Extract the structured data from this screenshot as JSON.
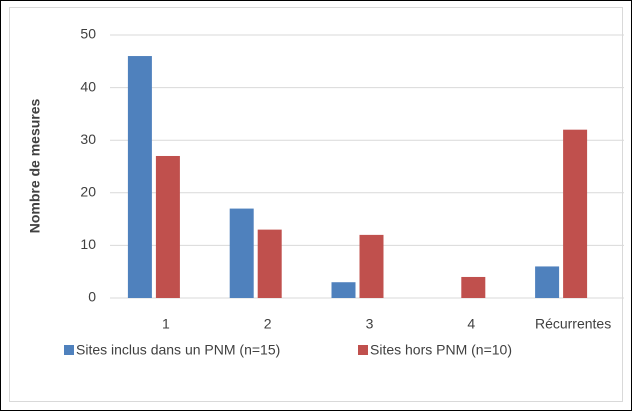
{
  "chart_data": {
    "type": "bar",
    "categories": [
      "1",
      "2",
      "3",
      "4",
      "Récurrentes"
    ],
    "series": [
      {
        "name": "Sites inclus dans un PNM (n=15)",
        "color": "#4f81bd",
        "values": [
          46,
          17,
          3,
          0,
          6
        ]
      },
      {
        "name": "Sites hors PNM (n=10)",
        "color": "#c0504d",
        "values": [
          27,
          13,
          12,
          4,
          32
        ]
      }
    ],
    "y_label": "Nombre de mesures",
    "ylim": [
      0,
      50
    ],
    "yticks": [
      0,
      10,
      20,
      30,
      40,
      50
    ],
    "grid": true,
    "legend": "bottom"
  }
}
